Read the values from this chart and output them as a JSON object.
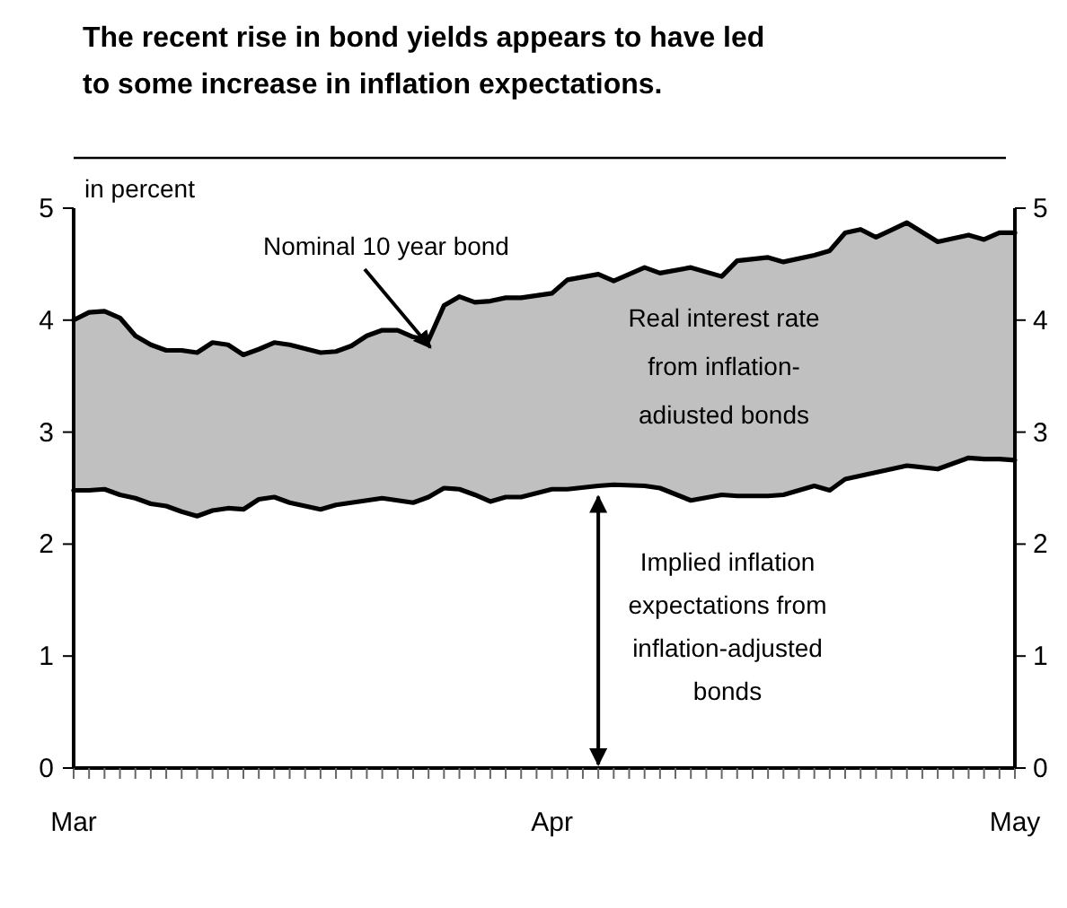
{
  "chart_data": {
    "type": "line",
    "title": "The recent rise in bond yields appears to have led\nto some increase in inflation expectations.",
    "ylabel": "in percent",
    "annotations": [
      "Real interest rate\nfrom inflation-\nadiusted bonds"
    ],
    "xlim": [
      "--03-01",
      "--05-01"
    ],
    "xticks": [
      {
        "value": "--03-01",
        "label": "Mar"
      },
      {
        "value": "--03-02",
        "label": null
      },
      {
        "value": "--03-03",
        "label": null
      },
      {
        "value": "--03-04",
        "label": null
      },
      {
        "value": "--03-05",
        "label": null
      },
      {
        "value": "--03-06",
        "label": null
      },
      {
        "value": "--03-07",
        "label": null
      },
      {
        "value": "--03-08",
        "label": null
      },
      {
        "value": "--03-09",
        "label": null
      },
      {
        "value": "--03-10",
        "label": null
      },
      {
        "value": "--03-11",
        "label": null
      },
      {
        "value": "--03-12",
        "label": null
      },
      {
        "value": "--03-13",
        "label": null
      },
      {
        "value": "--03-14",
        "label": null
      },
      {
        "value": "--03-15",
        "label": null
      },
      {
        "value": "--03-16",
        "label": null
      },
      {
        "value": "--03-17",
        "label": null
      },
      {
        "value": "--03-18",
        "label": null
      },
      {
        "value": "--03-19",
        "label": null
      },
      {
        "value": "--03-20",
        "label": null
      },
      {
        "value": "--03-21",
        "label": null
      },
      {
        "value": "--03-22",
        "label": null
      },
      {
        "value": "--03-23",
        "label": null
      },
      {
        "value": "--03-24",
        "label": null
      },
      {
        "value": "--03-25",
        "label": null
      },
      {
        "value": "--03-26",
        "label": null
      },
      {
        "value": "--03-27",
        "label": null
      },
      {
        "value": "--03-28",
        "label": null
      },
      {
        "value": "--03-29",
        "label": null
      },
      {
        "value": "--03-30",
        "label": null
      },
      {
        "value": "--03-31",
        "label": null
      },
      {
        "value": "--04-01",
        "label": "Apr"
      },
      {
        "value": "--04-02",
        "label": null
      },
      {
        "value": "--04-03",
        "label": null
      },
      {
        "value": "--04-04",
        "label": null
      },
      {
        "value": "--04-05",
        "label": null
      },
      {
        "value": "--04-06",
        "label": null
      },
      {
        "value": "--04-07",
        "label": null
      },
      {
        "value": "--04-08",
        "label": null
      },
      {
        "value": "--04-09",
        "label": null
      },
      {
        "value": "--04-10",
        "label": null
      },
      {
        "value": "--04-11",
        "label": null
      },
      {
        "value": "--04-12",
        "label": null
      },
      {
        "value": "--04-13",
        "label": null
      },
      {
        "value": "--04-14",
        "label": null
      },
      {
        "value": "--04-15",
        "label": null
      },
      {
        "value": "--04-16",
        "label": null
      },
      {
        "value": "--04-17",
        "label": null
      },
      {
        "value": "--04-18",
        "label": null
      },
      {
        "value": "--04-19",
        "label": null
      },
      {
        "value": "--04-20",
        "label": null
      },
      {
        "value": "--04-21",
        "label": null
      },
      {
        "value": "--04-22",
        "label": null
      },
      {
        "value": "--04-23",
        "label": null
      },
      {
        "value": "--04-24",
        "label": null
      },
      {
        "value": "--04-25",
        "label": null
      },
      {
        "value": "--04-26",
        "label": null
      },
      {
        "value": "--04-27",
        "label": null
      },
      {
        "value": "--04-28",
        "label": null
      },
      {
        "value": "--04-29",
        "label": null
      },
      {
        "value": "--04-30",
        "label": null
      },
      {
        "value": "--05-01",
        "label": "May"
      }
    ],
    "ylim": [
      0,
      5
    ],
    "yticks": [
      0,
      1,
      2,
      3,
      4,
      5
    ],
    "y2lim": [
      0,
      5
    ],
    "y2ticks": [
      0,
      1,
      2,
      3,
      4,
      5
    ],
    "line_style": "solid",
    "x": [
      "--03-01",
      "--03-02",
      "--03-03",
      "--03-04",
      "--03-05",
      "--03-06",
      "--03-07",
      "--03-08",
      "--03-09",
      "--03-10",
      "--03-11",
      "--03-12",
      "--03-13",
      "--03-14",
      "--03-15",
      "--03-17",
      "--03-18",
      "--03-19",
      "--03-20",
      "--03-21",
      "--03-22",
      "--03-23",
      "--03-24",
      "--03-25",
      "--03-26",
      "--03-27",
      "--03-28",
      "--03-29",
      "--03-30",
      "--04-01",
      "--04-02",
      "--04-04",
      "--04-05",
      "--04-07",
      "--04-08",
      "--04-10",
      "--04-12",
      "--04-13",
      "--04-15",
      "--04-16",
      "--04-18",
      "--04-19",
      "--04-20",
      "--04-21",
      "--04-22",
      "--04-24",
      "--04-26",
      "--04-28",
      "--04-29",
      "--04-30",
      "--05-01"
    ],
    "series": [
      {
        "name": "Implied inflation\nexpectations from\ninflation-adjusted\nbonds",
        "type": "line",
        "color": "#000000",
        "values": [
          2.48,
          2.48,
          2.49,
          2.44,
          2.41,
          2.36,
          2.34,
          2.29,
          2.25,
          2.3,
          2.32,
          2.31,
          2.4,
          2.42,
          2.37,
          2.31,
          2.35,
          2.37,
          2.39,
          2.41,
          2.39,
          2.37,
          2.42,
          2.5,
          2.49,
          2.44,
          2.38,
          2.42,
          2.42,
          2.49,
          2.49,
          2.52,
          2.53,
          2.52,
          2.5,
          2.39,
          2.44,
          2.43,
          2.43,
          2.44,
          2.52,
          2.48,
          2.58,
          2.61,
          2.64,
          2.7,
          2.67,
          2.77,
          2.76,
          2.76,
          2.75
        ]
      },
      {
        "name": "Nominal 10 year bond",
        "type": "line",
        "color": "#000000",
        "lower": [
          2.48,
          2.48,
          2.49,
          2.44,
          2.41,
          2.36,
          2.34,
          2.29,
          2.25,
          2.3,
          2.32,
          2.31,
          2.4,
          2.42,
          2.37,
          2.31,
          2.35,
          2.37,
          2.39,
          2.41,
          2.39,
          2.37,
          2.42,
          2.5,
          2.49,
          2.44,
          2.38,
          2.42,
          2.42,
          2.49,
          2.49,
          2.52,
          2.53,
          2.52,
          2.5,
          2.39,
          2.44,
          2.43,
          2.43,
          2.44,
          2.52,
          2.48,
          2.58,
          2.61,
          2.64,
          2.7,
          2.67,
          2.77,
          2.76,
          2.76,
          2.75
        ],
        "upper": [
          4.0,
          4.07,
          4.08,
          4.02,
          3.86,
          3.78,
          3.73,
          3.73,
          3.71,
          3.8,
          3.78,
          3.69,
          3.74,
          3.8,
          3.78,
          3.71,
          3.72,
          3.77,
          3.86,
          3.91,
          3.91,
          3.85,
          3.82,
          4.13,
          4.21,
          4.16,
          4.17,
          4.2,
          4.2,
          4.24,
          4.36,
          4.41,
          4.35,
          4.47,
          4.42,
          4.47,
          4.39,
          4.53,
          4.56,
          4.52,
          4.58,
          4.62,
          4.78,
          4.81,
          4.74,
          4.87,
          4.7,
          4.76,
          4.72,
          4.78,
          4.78
        ],
        "values": [
          4.0,
          4.07,
          4.08,
          4.02,
          3.86,
          3.78,
          3.73,
          3.73,
          3.71,
          3.8,
          3.78,
          3.69,
          3.74,
          3.8,
          3.78,
          3.71,
          3.72,
          3.77,
          3.86,
          3.91,
          3.91,
          3.85,
          3.82,
          4.13,
          4.21,
          4.16,
          4.17,
          4.2,
          4.2,
          4.24,
          4.36,
          4.41,
          4.35,
          4.47,
          4.42,
          4.47,
          4.39,
          4.53,
          4.56,
          4.52,
          4.58,
          4.62,
          4.78,
          4.81,
          4.74,
          4.87,
          4.7,
          4.76,
          4.72,
          4.78,
          4.78
        ]
      }
    ]
  }
}
